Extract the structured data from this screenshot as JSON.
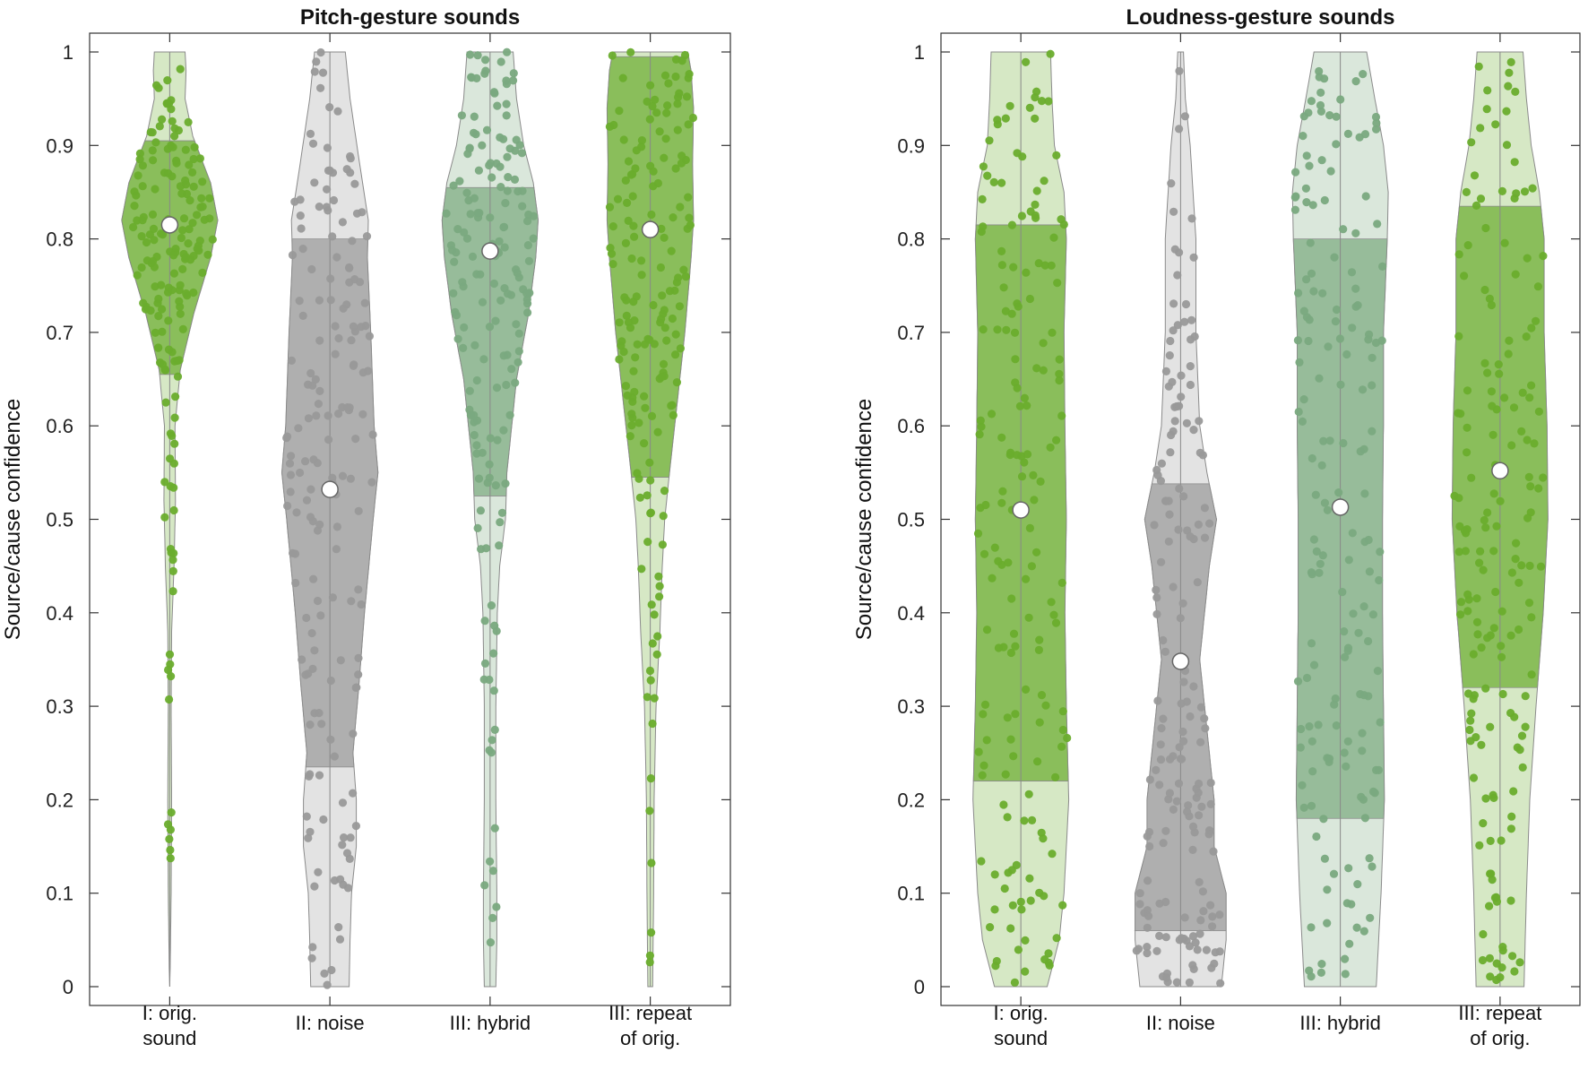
{
  "chart_data": [
    {
      "type": "violin",
      "title": "Pitch-gesture sounds",
      "ylabel": "Source/cause confidence",
      "ylim": [
        0,
        1
      ],
      "yticks": [
        "0",
        "0.1",
        "0.2",
        "0.3",
        "0.4",
        "0.5",
        "0.6",
        "0.7",
        "0.8",
        "0.9",
        "1"
      ],
      "categories": [
        [
          "I: orig.",
          "sound"
        ],
        [
          "II: noise"
        ],
        [
          "III: hybrid"
        ],
        [
          "III: repeat",
          "of orig."
        ]
      ],
      "series": [
        {
          "median": 0.815,
          "q1": 0.655,
          "q3": 0.905,
          "color": "#6aad2d",
          "density": [
            [
              0.0,
              0.0
            ],
            [
              0.02,
              0.01
            ],
            [
              0.1,
              0.03
            ],
            [
              0.2,
              0.04
            ],
            [
              0.3,
              0.03
            ],
            [
              0.38,
              0.04
            ],
            [
              0.45,
              0.09
            ],
            [
              0.52,
              0.12
            ],
            [
              0.6,
              0.11
            ],
            [
              0.66,
              0.22
            ],
            [
              0.72,
              0.5
            ],
            [
              0.78,
              0.85
            ],
            [
              0.82,
              1.0
            ],
            [
              0.86,
              0.85
            ],
            [
              0.91,
              0.48
            ],
            [
              0.95,
              0.32
            ],
            [
              0.98,
              0.34
            ],
            [
              1.0,
              0.32
            ]
          ]
        },
        {
          "median": 0.532,
          "q1": 0.235,
          "q3": 0.8,
          "color": "#999999",
          "density": [
            [
              0.0,
              0.4
            ],
            [
              0.05,
              0.42
            ],
            [
              0.1,
              0.45
            ],
            [
              0.15,
              0.55
            ],
            [
              0.2,
              0.55
            ],
            [
              0.25,
              0.48
            ],
            [
              0.32,
              0.6
            ],
            [
              0.4,
              0.72
            ],
            [
              0.5,
              0.9
            ],
            [
              0.55,
              1.0
            ],
            [
              0.6,
              0.92
            ],
            [
              0.7,
              0.85
            ],
            [
              0.78,
              0.78
            ],
            [
              0.82,
              0.8
            ],
            [
              0.88,
              0.62
            ],
            [
              0.95,
              0.42
            ],
            [
              1.0,
              0.32
            ]
          ]
        },
        {
          "median": 0.787,
          "q1": 0.525,
          "q3": 0.855,
          "color": "#7aa97f",
          "density": [
            [
              0.0,
              0.12
            ],
            [
              0.05,
              0.14
            ],
            [
              0.1,
              0.14
            ],
            [
              0.2,
              0.12
            ],
            [
              0.3,
              0.12
            ],
            [
              0.4,
              0.15
            ],
            [
              0.45,
              0.2
            ],
            [
              0.5,
              0.32
            ],
            [
              0.55,
              0.35
            ],
            [
              0.65,
              0.55
            ],
            [
              0.72,
              0.8
            ],
            [
              0.78,
              0.95
            ],
            [
              0.82,
              1.0
            ],
            [
              0.86,
              0.9
            ],
            [
              0.9,
              0.7
            ],
            [
              0.95,
              0.55
            ],
            [
              1.0,
              0.48
            ]
          ]
        },
        {
          "median": 0.81,
          "q1": 0.545,
          "q3": 0.995,
          "color": "#6aad2d",
          "density": [
            [
              0.0,
              0.05
            ],
            [
              0.05,
              0.06
            ],
            [
              0.1,
              0.07
            ],
            [
              0.2,
              0.08
            ],
            [
              0.3,
              0.12
            ],
            [
              0.38,
              0.2
            ],
            [
              0.45,
              0.25
            ],
            [
              0.5,
              0.3
            ],
            [
              0.55,
              0.4
            ],
            [
              0.62,
              0.55
            ],
            [
              0.7,
              0.72
            ],
            [
              0.78,
              0.85
            ],
            [
              0.82,
              0.9
            ],
            [
              0.88,
              0.88
            ],
            [
              0.94,
              0.9
            ],
            [
              0.98,
              0.85
            ],
            [
              1.0,
              0.78
            ]
          ]
        }
      ]
    },
    {
      "type": "violin",
      "title": "Loudness-gesture sounds",
      "ylabel": "Source/cause confidence",
      "ylim": [
        0,
        1
      ],
      "yticks": [
        "0",
        "0.1",
        "0.2",
        "0.3",
        "0.4",
        "0.5",
        "0.6",
        "0.7",
        "0.8",
        "0.9",
        "1"
      ],
      "categories": [
        [
          "I: orig.",
          "sound"
        ],
        [
          "II: noise"
        ],
        [
          "III: hybrid"
        ],
        [
          "III: repeat",
          "of orig."
        ]
      ],
      "series": [
        {
          "median": 0.51,
          "q1": 0.22,
          "q3": 0.815,
          "color": "#6aad2d",
          "density": [
            [
              0.0,
              0.55
            ],
            [
              0.05,
              0.8
            ],
            [
              0.1,
              0.9
            ],
            [
              0.15,
              0.95
            ],
            [
              0.2,
              1.0
            ],
            [
              0.3,
              0.95
            ],
            [
              0.4,
              0.92
            ],
            [
              0.5,
              0.95
            ],
            [
              0.6,
              0.92
            ],
            [
              0.7,
              0.9
            ],
            [
              0.8,
              0.95
            ],
            [
              0.85,
              0.9
            ],
            [
              0.9,
              0.7
            ],
            [
              0.95,
              0.65
            ],
            [
              1.0,
              0.62
            ]
          ]
        },
        {
          "median": 0.348,
          "q1": 0.06,
          "q3": 0.538,
          "color": "#999999",
          "density": [
            [
              0.0,
              0.85
            ],
            [
              0.05,
              0.95
            ],
            [
              0.1,
              0.95
            ],
            [
              0.15,
              0.7
            ],
            [
              0.2,
              0.7
            ],
            [
              0.25,
              0.6
            ],
            [
              0.3,
              0.5
            ],
            [
              0.35,
              0.4
            ],
            [
              0.45,
              0.6
            ],
            [
              0.5,
              0.75
            ],
            [
              0.55,
              0.55
            ],
            [
              0.6,
              0.4
            ],
            [
              0.7,
              0.32
            ],
            [
              0.8,
              0.32
            ],
            [
              0.9,
              0.2
            ],
            [
              0.95,
              0.1
            ],
            [
              1.0,
              0.06
            ]
          ]
        },
        {
          "median": 0.513,
          "q1": 0.18,
          "q3": 0.8,
          "color": "#7aa97f",
          "density": [
            [
              0.0,
              0.75
            ],
            [
              0.1,
              0.85
            ],
            [
              0.2,
              0.92
            ],
            [
              0.3,
              0.9
            ],
            [
              0.4,
              0.88
            ],
            [
              0.5,
              0.88
            ],
            [
              0.6,
              0.9
            ],
            [
              0.7,
              0.9
            ],
            [
              0.8,
              0.98
            ],
            [
              0.85,
              1.0
            ],
            [
              0.9,
              0.9
            ],
            [
              0.95,
              0.72
            ],
            [
              1.0,
              0.55
            ]
          ]
        },
        {
          "median": 0.552,
          "q1": 0.32,
          "q3": 0.835,
          "color": "#6aad2d",
          "density": [
            [
              0.0,
              0.5
            ],
            [
              0.1,
              0.55
            ],
            [
              0.2,
              0.62
            ],
            [
              0.3,
              0.75
            ],
            [
              0.4,
              0.9
            ],
            [
              0.5,
              1.0
            ],
            [
              0.6,
              0.98
            ],
            [
              0.7,
              0.92
            ],
            [
              0.8,
              0.92
            ],
            [
              0.85,
              0.82
            ],
            [
              0.9,
              0.65
            ],
            [
              0.95,
              0.55
            ],
            [
              1.0,
              0.48
            ]
          ]
        }
      ]
    }
  ]
}
